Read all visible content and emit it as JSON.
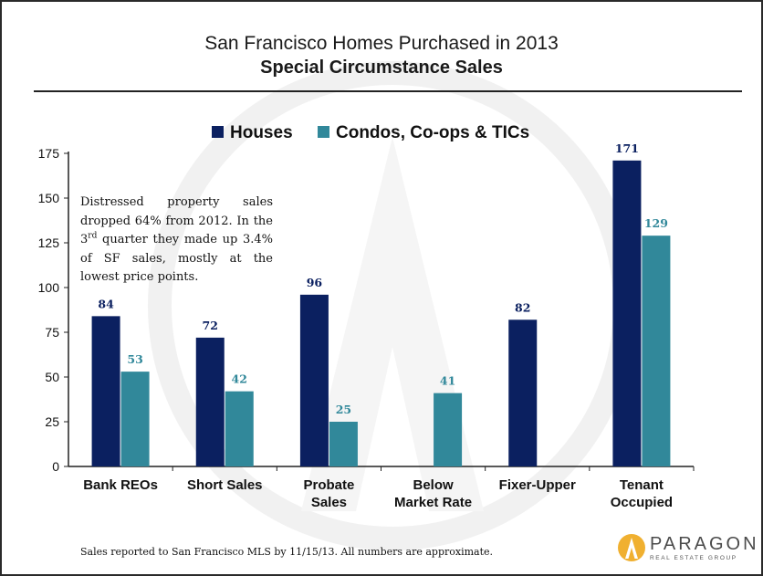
{
  "title": "San Francisco Homes Purchased in 2013",
  "subtitle": "Special Circumstance Sales",
  "note": {
    "part1": "Distressed property sales dropped 64% from 2012. In the 3",
    "sup": "rd",
    "part2": " quarter they made up 3.4% of SF sales, mostly at the lowest price points."
  },
  "footer": "Sales reported to San Francisco MLS by 11/15/13. All numbers are approximate.",
  "logo": {
    "word": "PARAGON",
    "sub": "REAL ESTATE GROUP",
    "icon": "paragon-logo-icon"
  },
  "colors": {
    "houses": "#0b2060",
    "condos": "#31889a",
    "houses_label": "#0b2060",
    "condos_label": "#31889a"
  },
  "chart_data": {
    "type": "bar",
    "categories": [
      "Bank REOs",
      "Short Sales",
      "Probate Sales",
      "Below Market Rate",
      "Fixer-Upper",
      "Tenant Occupied"
    ],
    "category_lines": [
      [
        "Bank REOs"
      ],
      [
        "Short Sales"
      ],
      [
        "Probate",
        "Sales"
      ],
      [
        "Below",
        "Market Rate"
      ],
      [
        "Fixer-Upper"
      ],
      [
        "Tenant",
        "Occupied"
      ]
    ],
    "series": [
      {
        "name": "Houses",
        "values": [
          84,
          72,
          96,
          null,
          82,
          171
        ]
      },
      {
        "name": "Condos, Co-ops & TICs",
        "values": [
          53,
          42,
          25,
          41,
          null,
          129
        ]
      }
    ],
    "ylim": [
      0,
      175
    ],
    "yticks": [
      0,
      25,
      50,
      75,
      100,
      125,
      150,
      175
    ],
    "legend": "top-center",
    "grid": false
  }
}
